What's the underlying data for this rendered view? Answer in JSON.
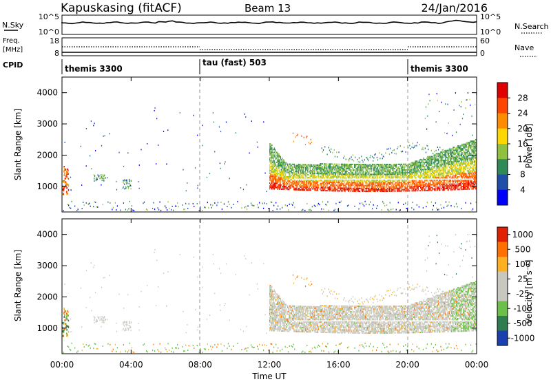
{
  "header": {
    "station": "Kapuskasing (fitACF)",
    "beam": "Beam 13",
    "date": "24/Jan/2016"
  },
  "sky_panel": {
    "left_label": "N.Sky",
    "left_ticks": [
      "10^5",
      "10^0"
    ],
    "right_ticks": [
      "10^5",
      "10^0"
    ],
    "right_label": "N.Search"
  },
  "freq_panel": {
    "left_label_1": "Freq.",
    "left_label_2": "[MHz]",
    "left_ticks": [
      "18",
      "8"
    ],
    "right_ticks": [
      "60",
      "0"
    ],
    "right_label": "Nave"
  },
  "cpid_panel": {
    "label": "CPID",
    "modes": [
      "themis 3300",
      "tau (fast) 503",
      "themis 3300"
    ]
  },
  "x_axis": {
    "label": "Time UT",
    "ticks": [
      "00:00",
      "04:00",
      "08:00",
      "12:00",
      "16:00",
      "20:00",
      "00:00"
    ]
  },
  "power_panel": {
    "ylabel": "Slant Range [km]",
    "yticks": [
      "4000",
      "3000",
      "2000",
      "1000"
    ],
    "colorbar_label": "Power [dB]",
    "colorbar_ticks": [
      "28",
      "24",
      "20",
      "16",
      "12",
      "8",
      "4"
    ],
    "colors": [
      "#0000ff",
      "#1f4fa8",
      "#2e8b57",
      "#90c040",
      "#ffd700",
      "#ff8c00",
      "#ff4500",
      "#e00000"
    ]
  },
  "velocity_panel": {
    "ylabel": "Slant Range [km]",
    "yticks": [
      "4000",
      "3000",
      "2000",
      "1000"
    ],
    "colorbar_label": "Velocity [m s⁻¹]",
    "colorbar_ticks": [
      "1000",
      "500",
      "100",
      "25",
      "-25",
      "-100",
      "-500",
      "-1000"
    ],
    "colors": [
      "#1a3fb0",
      "#2e7d4f",
      "#6cc04a",
      "#c8c8c0",
      "#c8c8c0",
      "#ffb020",
      "#ff7000",
      "#e02000"
    ]
  },
  "chart_data": {
    "type": "heatmap",
    "x_range_hours": [
      0,
      24
    ],
    "y_range_km": [
      180,
      4500
    ],
    "mode_changes_ut": [
      "08:00",
      "20:00"
    ],
    "power_scale_db": [
      0,
      30
    ],
    "velocity_scale_ms": [
      -1000,
      1000
    ]
  }
}
